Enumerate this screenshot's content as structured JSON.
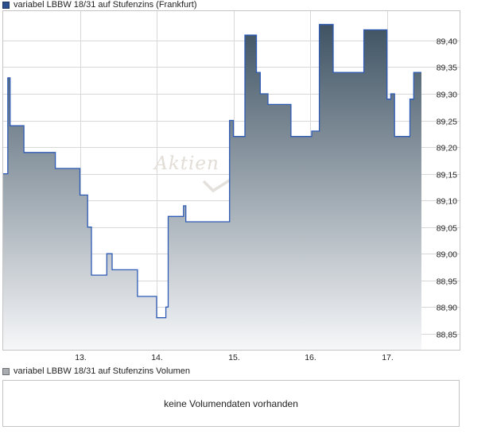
{
  "price_legend": {
    "label": "variabel LBBW 18/31 auf Stufenzins (Frankfurt)",
    "color": "#2b4f8c"
  },
  "volume_legend": {
    "label": "variabel LBBW 18/31 auf Stufenzins Volumen",
    "color": "#a9adb1"
  },
  "volume_message": "keine Volumendaten vorhanden",
  "watermark": {
    "text": "Aktien"
  },
  "colors": {
    "line": "#2e5bb5",
    "fill_top": "#3f5363",
    "fill_bottom": "#f6f7f9",
    "grid": "#d8d8d8",
    "frame": "#c4c4c4"
  },
  "chart_data": {
    "type": "area",
    "title": "variabel LBBW 18/31 auf Stufenzins (Frankfurt)",
    "x_ticks": [
      "13.",
      "14.",
      "15.",
      "16.",
      "17."
    ],
    "x_tick_positions": [
      1,
      2,
      3,
      4,
      5
    ],
    "xlim": [
      0.0,
      5.45
    ],
    "y_ticks": [
      "89,40",
      "89,35",
      "89,30",
      "89,25",
      "89,20",
      "89,15",
      "89,10",
      "89,05",
      "89,00",
      "88,95",
      "88,90",
      "88,85"
    ],
    "y_tick_values": [
      89.4,
      89.35,
      89.3,
      89.25,
      89.2,
      89.15,
      89.1,
      89.05,
      89.0,
      88.95,
      88.9,
      88.85
    ],
    "ylim": [
      88.82,
      89.455
    ],
    "grid": true,
    "series": [
      {
        "x": [
          0.0,
          0.03,
          0.06,
          0.09,
          0.12,
          0.2,
          0.27,
          0.32,
          0.5,
          0.68,
          0.75,
          0.95,
          1.0,
          1.03,
          1.1,
          1.15,
          1.3,
          1.35,
          1.42,
          1.7,
          1.75,
          1.97,
          2.0,
          2.05,
          2.12,
          2.15,
          2.28,
          2.35,
          2.38,
          2.6,
          2.93,
          2.95,
          3.0,
          3.05,
          3.15,
          3.3,
          3.35,
          3.45,
          3.6,
          3.7,
          3.75,
          3.97,
          4.02,
          4.05,
          4.12,
          4.3,
          4.3,
          4.35,
          4.5,
          4.7,
          4.7,
          4.95,
          5.0,
          5.05,
          5.1,
          5.22,
          5.3,
          5.35,
          5.45
        ],
        "y": [
          89.15,
          89.15,
          89.33,
          89.24,
          89.24,
          89.24,
          89.19,
          89.19,
          89.19,
          89.16,
          89.16,
          89.16,
          89.11,
          89.11,
          89.05,
          88.96,
          88.96,
          89.0,
          88.97,
          88.97,
          88.92,
          88.92,
          88.88,
          88.88,
          88.9,
          89.07,
          89.07,
          89.09,
          89.06,
          89.06,
          89.06,
          89.25,
          89.22,
          89.22,
          89.41,
          89.34,
          89.3,
          89.28,
          89.28,
          89.28,
          89.22,
          89.22,
          89.23,
          89.23,
          89.43,
          89.43,
          89.34,
          89.34,
          89.34,
          89.34,
          89.42,
          89.42,
          89.29,
          89.3,
          89.22,
          89.22,
          89.29,
          89.34,
          89.34
        ]
      }
    ]
  }
}
